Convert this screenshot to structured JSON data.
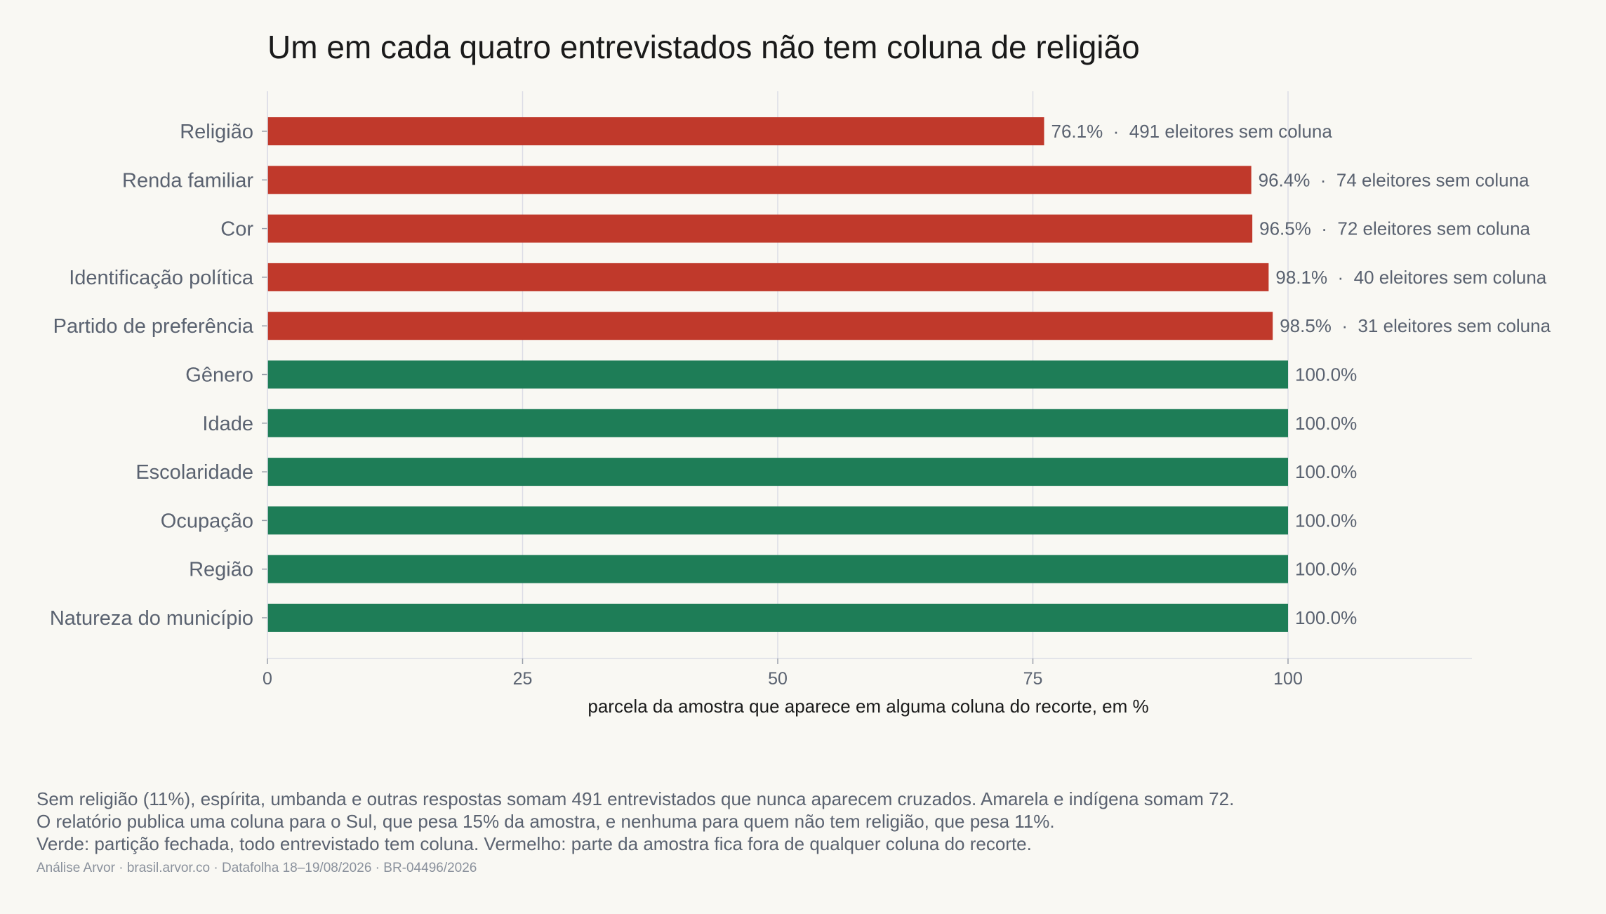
{
  "title": "Um em cada quatro entrevistados não tem coluna de religião",
  "notes": [
    "Sem religião (11%), espírita, umbanda e outras respostas somam 491 entrevistados que nunca aparecem cruzados. Amarela e indígena somam 72.",
    "O relatório publica uma coluna para o Sul, que pesa 15% da amostra, e nenhuma para quem não tem religião, que pesa 11%.",
    "Verde: partição fechada, todo entrevistado tem coluna. Vermelho: parte da amostra fica fora de qualquer coluna do recorte."
  ],
  "source": "Análise Arvor · brasil.arvor.co · Datafolha 18–19/08/2026 · BR-04496/2026",
  "colors": {
    "red": "#c0392b",
    "green": "#1e7d57",
    "grid": "#dcdde6",
    "label": "#5a6270"
  },
  "chart_data": {
    "type": "bar",
    "orientation": "horizontal",
    "title": "Um em cada quatro entrevistados não tem coluna de religião",
    "xlabel": "parcela da amostra que aparece em alguma coluna do recorte, em %",
    "xlim": [
      0,
      118
    ],
    "xticks": [
      0,
      25,
      50,
      75,
      100
    ],
    "grid": "vertical",
    "categories": [
      "Religião",
      "Renda familiar",
      "Cor",
      "Identificação política",
      "Partido de preferência",
      "Gênero",
      "Idade",
      "Escolaridade",
      "Ocupação",
      "Região",
      "Natureza do município"
    ],
    "values": [
      76.1,
      96.4,
      96.5,
      98.1,
      98.5,
      100.0,
      100.0,
      100.0,
      100.0,
      100.0,
      100.0
    ],
    "status": [
      "red",
      "red",
      "red",
      "red",
      "red",
      "green",
      "green",
      "green",
      "green",
      "green",
      "green"
    ],
    "labels": [
      "76.1%  ·  491 eleitores sem coluna",
      "96.4%  ·  74 eleitores sem coluna",
      "96.5%  ·  72 eleitores sem coluna",
      "98.1%  ·  40 eleitores sem coluna",
      "98.5%  ·  31 eleitores sem coluna",
      "100.0%",
      "100.0%",
      "100.0%",
      "100.0%",
      "100.0%",
      "100.0%"
    ]
  }
}
